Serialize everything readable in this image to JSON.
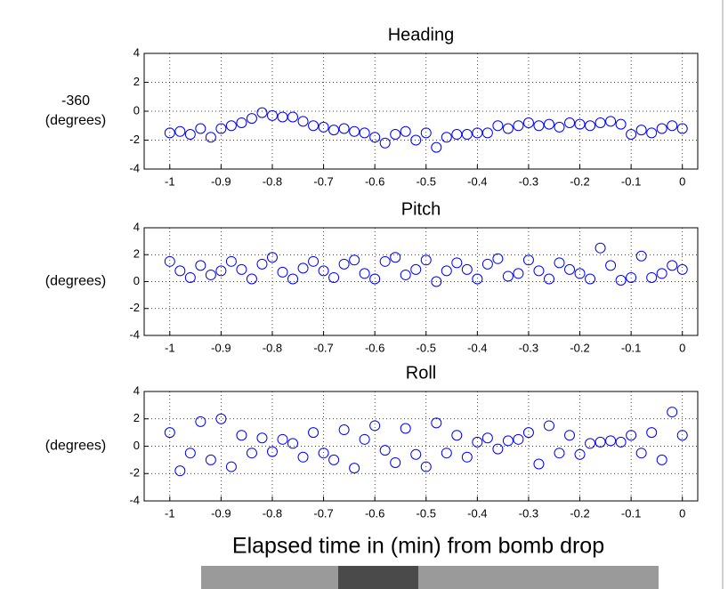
{
  "caption": "Elapsed time in (min) from bomb drop",
  "chart_data": [
    {
      "type": "scatter",
      "title": "Heading",
      "ylabel": [
        "-360",
        "(degrees)"
      ],
      "color": "#0000ff",
      "grid": true,
      "xlim": [
        -1.05,
        0.03
      ],
      "xticks": [
        -1,
        -0.9,
        -0.8,
        -0.7,
        -0.6,
        -0.5,
        -0.4,
        -0.3,
        -0.2,
        -0.1,
        0
      ],
      "ylim": [
        -4,
        4
      ],
      "yticks": [
        -4,
        -2,
        0,
        2,
        4
      ],
      "x": [
        -1,
        -0.98,
        -0.96,
        -0.94,
        -0.92,
        -0.9,
        -0.88,
        -0.86,
        -0.84,
        -0.82,
        -0.8,
        -0.78,
        -0.76,
        -0.74,
        -0.72,
        -0.7,
        -0.68,
        -0.66,
        -0.64,
        -0.62,
        -0.6,
        -0.58,
        -0.56,
        -0.54,
        -0.52,
        -0.5,
        -0.48,
        -0.46,
        -0.44,
        -0.42,
        -0.4,
        -0.38,
        -0.36,
        -0.34,
        -0.32,
        -0.3,
        -0.28,
        -0.26,
        -0.24,
        -0.22,
        -0.2,
        -0.18,
        -0.16,
        -0.14,
        -0.12,
        -0.1,
        -0.08,
        -0.06,
        -0.04,
        -0.02,
        0
      ],
      "values": [
        -1.5,
        -1.4,
        -1.6,
        -1.2,
        -1.8,
        -1.2,
        -1.0,
        -0.8,
        -0.5,
        -0.1,
        -0.3,
        -0.4,
        -0.4,
        -0.7,
        -1.0,
        -1.1,
        -1.3,
        -1.2,
        -1.4,
        -1.5,
        -1.8,
        -2.2,
        -1.6,
        -1.4,
        -2.0,
        -1.5,
        -2.5,
        -1.8,
        -1.6,
        -1.6,
        -1.5,
        -1.5,
        -1.0,
        -1.2,
        -1.0,
        -0.8,
        -1.0,
        -0.9,
        -1.1,
        -0.8,
        -0.9,
        -1.0,
        -0.8,
        -0.7,
        -0.9,
        -1.6,
        -1.3,
        -1.5,
        -1.2,
        -1.0,
        -1.2
      ]
    },
    {
      "type": "scatter",
      "title": "Pitch",
      "ylabel": [
        "(degrees)"
      ],
      "color": "#0000ff",
      "grid": true,
      "xlim": [
        -1.05,
        0.03
      ],
      "xticks": [
        -1,
        -0.9,
        -0.8,
        -0.7,
        -0.6,
        -0.5,
        -0.4,
        -0.3,
        -0.2,
        -0.1,
        0
      ],
      "ylim": [
        -4,
        4
      ],
      "yticks": [
        -4,
        -2,
        0,
        2,
        4
      ],
      "x": [
        -1,
        -0.98,
        -0.96,
        -0.94,
        -0.92,
        -0.9,
        -0.88,
        -0.86,
        -0.84,
        -0.82,
        -0.8,
        -0.78,
        -0.76,
        -0.74,
        -0.72,
        -0.7,
        -0.68,
        -0.66,
        -0.64,
        -0.62,
        -0.6,
        -0.58,
        -0.56,
        -0.54,
        -0.52,
        -0.5,
        -0.48,
        -0.46,
        -0.44,
        -0.42,
        -0.4,
        -0.38,
        -0.36,
        -0.34,
        -0.32,
        -0.3,
        -0.28,
        -0.26,
        -0.24,
        -0.22,
        -0.2,
        -0.18,
        -0.16,
        -0.14,
        -0.12,
        -0.1,
        -0.08,
        -0.06,
        -0.04,
        -0.02,
        0
      ],
      "values": [
        1.5,
        0.8,
        0.3,
        1.2,
        0.5,
        0.8,
        1.5,
        0.9,
        0.2,
        1.3,
        1.8,
        0.7,
        0.2,
        1.0,
        1.5,
        0.8,
        0.3,
        1.3,
        1.6,
        0.6,
        0.2,
        1.5,
        1.8,
        0.5,
        0.9,
        1.6,
        0.0,
        0.8,
        1.4,
        0.9,
        0.2,
        1.3,
        1.7,
        0.4,
        0.6,
        1.6,
        0.8,
        0.2,
        1.4,
        0.9,
        0.6,
        0.2,
        2.5,
        1.2,
        0.1,
        0.3,
        1.9,
        0.3,
        0.6,
        1.2,
        0.9
      ]
    },
    {
      "type": "scatter",
      "title": "Roll",
      "ylabel": [
        "(degrees)"
      ],
      "color": "#0000ff",
      "grid": true,
      "xlim": [
        -1.05,
        0.03
      ],
      "xticks": [
        -1,
        -0.9,
        -0.8,
        -0.7,
        -0.6,
        -0.5,
        -0.4,
        -0.3,
        -0.2,
        -0.1,
        0
      ],
      "ylim": [
        -4,
        4
      ],
      "yticks": [
        -4,
        -2,
        0,
        2,
        4
      ],
      "x": [
        -1,
        -0.98,
        -0.96,
        -0.94,
        -0.92,
        -0.9,
        -0.88,
        -0.86,
        -0.84,
        -0.82,
        -0.8,
        -0.78,
        -0.76,
        -0.74,
        -0.72,
        -0.7,
        -0.68,
        -0.66,
        -0.64,
        -0.62,
        -0.6,
        -0.58,
        -0.56,
        -0.54,
        -0.52,
        -0.5,
        -0.48,
        -0.46,
        -0.44,
        -0.42,
        -0.4,
        -0.38,
        -0.36,
        -0.34,
        -0.32,
        -0.3,
        -0.28,
        -0.26,
        -0.24,
        -0.22,
        -0.2,
        -0.18,
        -0.16,
        -0.14,
        -0.12,
        -0.1,
        -0.08,
        -0.06,
        -0.04,
        -0.02,
        0
      ],
      "values": [
        1.0,
        -1.8,
        -0.5,
        1.8,
        -1.0,
        2.0,
        -1.5,
        0.8,
        -0.5,
        0.6,
        -0.4,
        0.5,
        0.2,
        -0.8,
        1.0,
        -0.5,
        -1.0,
        1.2,
        -1.6,
        0.5,
        1.5,
        -0.3,
        -1.2,
        1.3,
        -0.6,
        -1.5,
        1.7,
        -0.5,
        0.8,
        -0.8,
        0.3,
        0.6,
        -0.2,
        0.4,
        0.5,
        1.0,
        -1.3,
        1.5,
        -0.5,
        0.8,
        -0.6,
        0.2,
        0.3,
        0.4,
        0.3,
        0.8,
        -0.5,
        1.0,
        -1.0,
        2.5,
        0.8
      ]
    }
  ]
}
